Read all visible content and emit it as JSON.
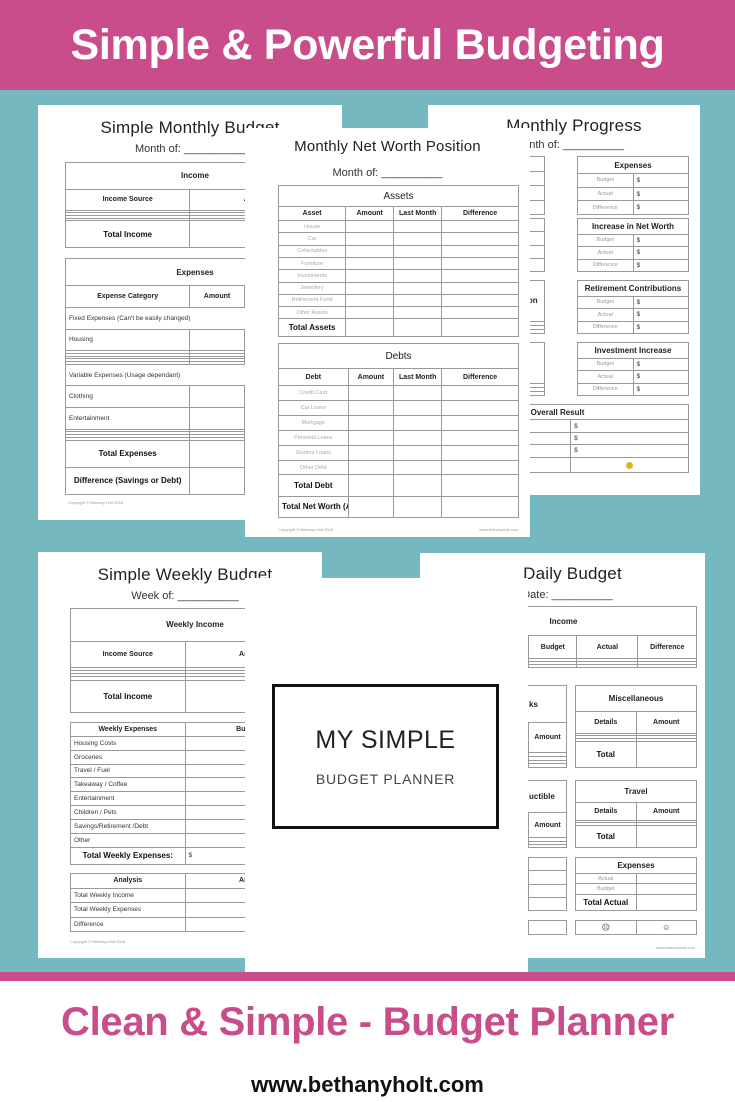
{
  "header": {
    "title": "Simple & Powerful Budgeting"
  },
  "footer": {
    "tagline": "Clean & Simple - Budget Planner",
    "url": "www.bethanyholt.com"
  },
  "colors": {
    "brand_pink": "#c94d8a",
    "teal_background": "#76b8bf",
    "page": "#ffffff"
  },
  "monthly_budget": {
    "title": "Simple Monthly Budget",
    "month_of": "Month of: __________",
    "income": {
      "rows": [
        {
          "kind": "header",
          "cells": [
            "Income"
          ]
        },
        {
          "kind": "sub",
          "cells": [
            "Income Source",
            "Amount"
          ]
        },
        {
          "kind": "",
          "cells": [
            "",
            ""
          ]
        },
        {
          "kind": "",
          "cells": [
            "",
            ""
          ]
        },
        {
          "kind": "",
          "cells": [
            "",
            ""
          ]
        },
        {
          "kind": "",
          "cells": [
            "",
            ""
          ]
        },
        {
          "kind": "total",
          "cells": [
            "Total Income",
            ""
          ]
        }
      ]
    },
    "expenses": {
      "rows": [
        {
          "kind": "header",
          "cells": [
            "Expenses"
          ]
        },
        {
          "kind": "sub",
          "cells": [
            "Expense Category",
            "Amount",
            ""
          ]
        },
        {
          "kind": "section",
          "cells": [
            "Fixed Expenses (Can't be easily changed)"
          ]
        },
        {
          "kind": "",
          "cells": [
            "Housing",
            "",
            ""
          ]
        },
        {
          "kind": "",
          "cells": [
            "",
            "",
            ""
          ]
        },
        {
          "kind": "",
          "cells": [
            "",
            "",
            ""
          ]
        },
        {
          "kind": "",
          "cells": [
            "",
            "",
            ""
          ]
        },
        {
          "kind": "",
          "cells": [
            "",
            "",
            ""
          ]
        },
        {
          "kind": "",
          "cells": [
            "",
            "",
            ""
          ]
        },
        {
          "kind": "section",
          "cells": [
            "Variable Expenses (Usage dependant)"
          ]
        },
        {
          "kind": "",
          "cells": [
            "Clothing",
            "",
            ""
          ]
        },
        {
          "kind": "",
          "cells": [
            "Entertainment",
            "",
            ""
          ]
        },
        {
          "kind": "",
          "cells": [
            "",
            "",
            ""
          ]
        },
        {
          "kind": "",
          "cells": [
            "",
            "",
            ""
          ]
        },
        {
          "kind": "",
          "cells": [
            "",
            "",
            ""
          ]
        },
        {
          "kind": "",
          "cells": [
            "",
            "",
            ""
          ]
        },
        {
          "kind": "total",
          "cells": [
            "Total Expenses",
            "",
            ""
          ]
        },
        {
          "kind": "total",
          "cells": [
            "Difference (Savings or Debt)",
            "",
            ""
          ]
        }
      ]
    },
    "copyright": "Copyright © Bethany Holt 2018"
  },
  "net_worth": {
    "title": "Monthly Net Worth Position",
    "month_of": "Month of: __________",
    "assets": {
      "rows": [
        {
          "kind": "header",
          "cells": [
            "Assets"
          ]
        },
        {
          "kind": "sub",
          "cells": [
            "Asset",
            "Amount",
            "Last Month",
            "Difference"
          ]
        },
        {
          "kind": "light",
          "cells": [
            "House",
            "",
            "",
            ""
          ]
        },
        {
          "kind": "light",
          "cells": [
            "Car",
            "",
            "",
            ""
          ]
        },
        {
          "kind": "light",
          "cells": [
            "Collectables",
            "",
            "",
            ""
          ]
        },
        {
          "kind": "light",
          "cells": [
            "Furniture",
            "",
            "",
            ""
          ]
        },
        {
          "kind": "light",
          "cells": [
            "Investments",
            "",
            "",
            ""
          ]
        },
        {
          "kind": "light",
          "cells": [
            "Jewellery",
            "",
            "",
            ""
          ]
        },
        {
          "kind": "light",
          "cells": [
            "Retirement Fund",
            "",
            "",
            ""
          ]
        },
        {
          "kind": "light",
          "cells": [
            "Other Assets",
            "",
            "",
            ""
          ]
        },
        {
          "kind": "total",
          "cells": [
            "Total Assets",
            "",
            "",
            ""
          ]
        }
      ]
    },
    "debts": {
      "rows": [
        {
          "kind": "header",
          "cells": [
            "Debts"
          ]
        },
        {
          "kind": "sub",
          "cells": [
            "Debt",
            "Amount",
            "Last Month",
            "Difference"
          ]
        },
        {
          "kind": "light",
          "cells": [
            "Credit Card",
            "",
            "",
            ""
          ]
        },
        {
          "kind": "light",
          "cells": [
            "Car Loans",
            "",
            "",
            ""
          ]
        },
        {
          "kind": "light",
          "cells": [
            "Mortgage",
            "",
            "",
            ""
          ]
        },
        {
          "kind": "light",
          "cells": [
            "Personal Loans",
            "",
            "",
            ""
          ]
        },
        {
          "kind": "light",
          "cells": [
            "Student Loans",
            "",
            "",
            ""
          ]
        },
        {
          "kind": "light",
          "cells": [
            "Other Debt",
            "",
            "",
            ""
          ]
        },
        {
          "kind": "total",
          "cells": [
            "Total Debt",
            "",
            "",
            ""
          ]
        },
        {
          "kind": "total",
          "cells": [
            "Total Net Worth (Assets – Debt)",
            "",
            "",
            ""
          ]
        }
      ]
    },
    "copyright": "Copyright © Bethany Holt 2018",
    "url": "www.bethanyholt.com"
  },
  "monthly_progress": {
    "title": "Monthly Progress",
    "month_of": "Month of: __________",
    "left_boxes": [
      {
        "rows": [
          {
            "kind": "header",
            "cells": [
              ""
            ]
          },
          {
            "kind": "",
            "cells": [
              ""
            ]
          },
          {
            "kind": "",
            "cells": [
              ""
            ]
          },
          {
            "kind": "",
            "cells": [
              ""
            ]
          }
        ]
      },
      {
        "rows": [
          {
            "kind": "header",
            "cells": [
              ""
            ]
          },
          {
            "kind": "",
            "cells": [
              ""
            ]
          },
          {
            "kind": "",
            "cells": [
              ""
            ]
          },
          {
            "kind": "",
            "cells": [
              ""
            ]
          }
        ]
      },
      {
        "rows": [
          {
            "kind": "header",
            "cells": [
              "tion"
            ]
          },
          {
            "kind": "",
            "cells": [
              ""
            ]
          },
          {
            "kind": "",
            "cells": [
              ""
            ]
          },
          {
            "kind": "",
            "cells": [
              ""
            ]
          }
        ]
      },
      {
        "rows": [
          {
            "kind": "header",
            "cells": [
              "e"
            ]
          },
          {
            "kind": "",
            "cells": [
              ""
            ]
          },
          {
            "kind": "",
            "cells": [
              ""
            ]
          },
          {
            "kind": "",
            "cells": [
              ""
            ]
          }
        ]
      }
    ],
    "right_boxes": [
      {
        "rows": [
          {
            "kind": "header",
            "cells": [
              "Expenses"
            ]
          },
          {
            "kind": "lightc",
            "cells": [
              "Budget",
              "$"
            ]
          },
          {
            "kind": "lightc",
            "cells": [
              "Actual",
              "$"
            ]
          },
          {
            "kind": "lightc",
            "cells": [
              "Difference",
              "$"
            ]
          }
        ]
      },
      {
        "rows": [
          {
            "kind": "header",
            "cells": [
              "Increase in Net Worth"
            ]
          },
          {
            "kind": "lightc",
            "cells": [
              "Budget",
              "$"
            ]
          },
          {
            "kind": "lightc",
            "cells": [
              "Actual",
              "$"
            ]
          },
          {
            "kind": "lightc",
            "cells": [
              "Difference",
              "$"
            ]
          }
        ]
      },
      {
        "rows": [
          {
            "kind": "header",
            "cells": [
              "Retirement Contributions"
            ]
          },
          {
            "kind": "lightc",
            "cells": [
              "Budget",
              "$"
            ]
          },
          {
            "kind": "lightc",
            "cells": [
              "Actual",
              "$"
            ]
          },
          {
            "kind": "lightc",
            "cells": [
              "Difference",
              "$"
            ]
          }
        ]
      },
      {
        "rows": [
          {
            "kind": "header",
            "cells": [
              "Investment Increase"
            ]
          },
          {
            "kind": "lightc",
            "cells": [
              "Budget",
              "$"
            ]
          },
          {
            "kind": "lightc",
            "cells": [
              "Actual",
              "$"
            ]
          },
          {
            "kind": "lightc",
            "cells": [
              "Difference",
              "$"
            ]
          }
        ]
      }
    ],
    "overall": {
      "rows": [
        {
          "kind": "header",
          "cells": [
            "Overall Result"
          ]
        },
        {
          "kind": "",
          "cells": [
            "",
            "$"
          ]
        },
        {
          "kind": "",
          "cells": [
            "",
            "$"
          ]
        },
        {
          "kind": "",
          "cells": [
            "",
            "$"
          ]
        },
        {
          "kind": "icons",
          "cells": [
            "",
            ""
          ]
        }
      ]
    },
    "result_icon": "sad-face-icon"
  },
  "weekly_budget": {
    "title": "Simple Weekly Budget",
    "week_of": "Week of: __________",
    "income": {
      "rows": [
        {
          "kind": "header",
          "cells": [
            "Weekly Income"
          ]
        },
        {
          "kind": "sub",
          "cells": [
            "Income Source",
            "Amount"
          ]
        },
        {
          "kind": "",
          "cells": [
            "",
            ""
          ]
        },
        {
          "kind": "",
          "cells": [
            "",
            ""
          ]
        },
        {
          "kind": "",
          "cells": [
            "",
            ""
          ]
        },
        {
          "kind": "",
          "cells": [
            "",
            ""
          ]
        },
        {
          "kind": "total",
          "cells": [
            "Total Income",
            ""
          ]
        }
      ]
    },
    "expenses": {
      "rows": [
        {
          "kind": "sub",
          "cells": [
            "Weekly Expenses",
            "Budgeted"
          ]
        },
        {
          "kind": "",
          "cells": [
            "Housing Costs",
            ""
          ]
        },
        {
          "kind": "",
          "cells": [
            "Groceries",
            ""
          ]
        },
        {
          "kind": "",
          "cells": [
            "Travel / Fuel",
            ""
          ]
        },
        {
          "kind": "",
          "cells": [
            "Takeaway / Coffee",
            ""
          ]
        },
        {
          "kind": "",
          "cells": [
            "Entertainment",
            ""
          ]
        },
        {
          "kind": "",
          "cells": [
            "Children / Pets",
            ""
          ]
        },
        {
          "kind": "",
          "cells": [
            "Savings/Retirement /Debt",
            ""
          ]
        },
        {
          "kind": "",
          "cells": [
            "Other",
            ""
          ]
        },
        {
          "kind": "total",
          "cells": [
            "Total Weekly Expenses:",
            "$"
          ]
        }
      ]
    },
    "analysis": {
      "rows": [
        {
          "kind": "sub",
          "cells": [
            "Analysis",
            "Amount"
          ]
        },
        {
          "kind": "",
          "cells": [
            "Total Weekly Income",
            ""
          ]
        },
        {
          "kind": "",
          "cells": [
            "Total Weekly Expenses",
            ""
          ]
        },
        {
          "kind": "",
          "cells": [
            "Difference",
            ""
          ]
        }
      ]
    },
    "copyright": "Copyright © Bethany Holt 2018"
  },
  "daily_budget": {
    "title": "Daily Budget",
    "date": "Date: __________",
    "income": {
      "rows": [
        {
          "kind": "header",
          "cells": [
            "Income"
          ]
        },
        {
          "kind": "sub",
          "cells": [
            "",
            "Budget",
            "Actual",
            "Difference"
          ]
        },
        {
          "kind": "",
          "cells": [
            "",
            "",
            "",
            ""
          ]
        },
        {
          "kind": "",
          "cells": [
            "",
            "",
            "",
            ""
          ]
        },
        {
          "kind": "",
          "cells": [
            "",
            "",
            "",
            ""
          ]
        }
      ]
    },
    "left_boxes": [
      {
        "rows": [
          {
            "kind": "header",
            "cells": [
              "ks"
            ]
          },
          {
            "kind": "sub",
            "cells": [
              "",
              "Amount"
            ]
          },
          {
            "kind": "",
            "cells": [
              "",
              ""
            ]
          },
          {
            "kind": "",
            "cells": [
              "",
              ""
            ]
          },
          {
            "kind": "",
            "cells": [
              "",
              ""
            ]
          },
          {
            "kind": "",
            "cells": [
              "",
              ""
            ]
          }
        ]
      },
      {
        "rows": [
          {
            "kind": "header",
            "cells": [
              "uctible"
            ]
          },
          {
            "kind": "sub",
            "cells": [
              "",
              "Amount"
            ]
          },
          {
            "kind": "",
            "cells": [
              "",
              ""
            ]
          },
          {
            "kind": "",
            "cells": [
              "",
              ""
            ]
          },
          {
            "kind": "",
            "cells": [
              "",
              ""
            ]
          }
        ]
      },
      {
        "rows": [
          {
            "kind": "",
            "cells": [
              "",
              ""
            ]
          },
          {
            "kind": "",
            "cells": [
              "",
              ""
            ]
          },
          {
            "kind": "",
            "cells": [
              "",
              ""
            ]
          },
          {
            "kind": "",
            "cells": [
              "",
              ""
            ]
          }
        ]
      },
      {
        "rows": [
          {
            "kind": "",
            "cells": [
              "",
              ""
            ]
          }
        ]
      }
    ],
    "misc": {
      "rows": [
        {
          "kind": "header",
          "cells": [
            "Miscellaneous"
          ]
        },
        {
          "kind": "sub",
          "cells": [
            "Details",
            "Amount"
          ]
        },
        {
          "kind": "",
          "cells": [
            "",
            ""
          ]
        },
        {
          "kind": "",
          "cells": [
            "",
            ""
          ]
        },
        {
          "kind": "",
          "cells": [
            "",
            ""
          ]
        },
        {
          "kind": "total",
          "cells": [
            "Total",
            ""
          ]
        }
      ]
    },
    "travel": {
      "rows": [
        {
          "kind": "header",
          "cells": [
            "Travel"
          ]
        },
        {
          "kind": "sub",
          "cells": [
            "Details",
            "Amount"
          ]
        },
        {
          "kind": "",
          "cells": [
            "",
            ""
          ]
        },
        {
          "kind": "",
          "cells": [
            "",
            ""
          ]
        },
        {
          "kind": "total",
          "cells": [
            "Total",
            ""
          ]
        }
      ]
    },
    "expenses": {
      "rows": [
        {
          "kind": "header",
          "cells": [
            "Expenses"
          ]
        },
        {
          "kind": "lightc",
          "cells": [
            "Actual",
            ""
          ]
        },
        {
          "kind": "lightc",
          "cells": [
            "Budget",
            ""
          ]
        },
        {
          "kind": "total",
          "cells": [
            "Total Actual",
            ""
          ]
        }
      ]
    },
    "mood": {
      "rows": [
        {
          "kind": "icons",
          "cells": [
            "☹",
            "☺"
          ]
        }
      ]
    },
    "mood_icons": [
      "sad-face-icon",
      "happy-face-icon"
    ],
    "url": "www.bethanyholt.com"
  },
  "cover": {
    "title": "MY SIMPLE",
    "subtitle": "BUDGET PLANNER"
  }
}
